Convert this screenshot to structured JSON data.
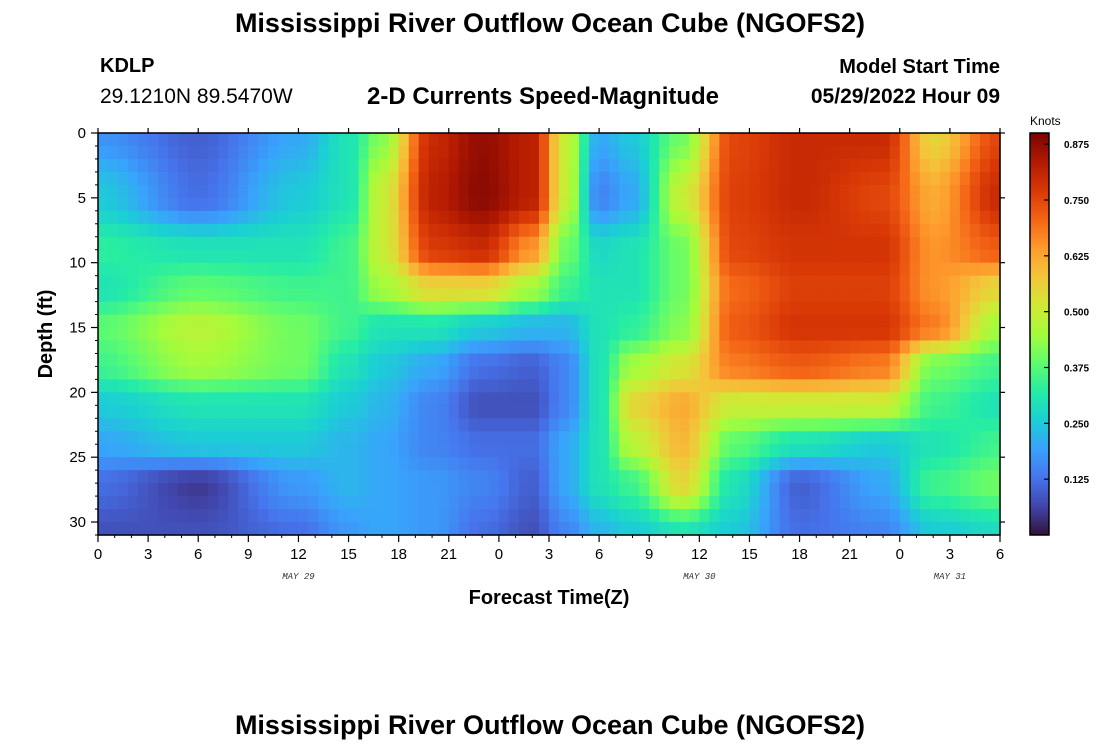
{
  "header": {
    "main_title": "Mississippi River Outflow Ocean Cube (NGOFS2)",
    "station_id": "KDLP",
    "station_coords": "29.1210N  89.5470W",
    "plot_title": "2-D Currents Speed-Magnitude",
    "start_label": "Model Start Time",
    "start_value": "05/29/2022 Hour 09"
  },
  "footer": {
    "bottom_title": "Mississippi River Outflow Ocean Cube (NGOFS2)"
  },
  "chart_data": {
    "type": "heatmap",
    "title": "2-D Currents Speed-Magnitude",
    "xlabel": "Forecast Time(Z)",
    "ylabel": "Depth (ft)",
    "x_hours_range": [
      0,
      54
    ],
    "y_range": [
      0,
      31
    ],
    "y_inverted": true,
    "x_ticks": [
      "0",
      "3",
      "6",
      "9",
      "12",
      "15",
      "18",
      "21",
      "0",
      "3",
      "6",
      "9",
      "12",
      "15",
      "18",
      "21",
      "0",
      "3",
      "6"
    ],
    "y_ticks": [
      "0",
      "5",
      "10",
      "15",
      "20",
      "25",
      "30"
    ],
    "date_labels": [
      {
        "text": "MAY 29",
        "hour": 12
      },
      {
        "text": "MAY 30",
        "hour": 36
      },
      {
        "text": "MAY 31",
        "hour": 51
      }
    ],
    "colorbar": {
      "unit": "Knots",
      "min": 0,
      "max": 0.9,
      "ticks": [
        "0.125",
        "0.250",
        "0.375",
        "0.500",
        "0.625",
        "0.750",
        "0.875"
      ],
      "colors": [
        "#30123b",
        "#4145ab",
        "#4675ed",
        "#39a2fc",
        "#1bcfd4",
        "#24eca6",
        "#61fc6c",
        "#a4fc3b",
        "#d1e834",
        "#f3c63a",
        "#fe9b2d",
        "#f36315",
        "#d93806",
        "#b11901",
        "#7a0403"
      ]
    },
    "grid_points": [
      [
        0,
        0,
        0.17
      ],
      [
        6,
        0,
        0.1
      ],
      [
        12,
        0,
        0.2
      ],
      [
        15,
        0,
        0.3
      ],
      [
        17,
        0,
        0.42
      ],
      [
        20,
        0,
        0.8
      ],
      [
        23,
        0,
        0.87
      ],
      [
        26,
        0,
        0.82
      ],
      [
        28,
        0,
        0.5
      ],
      [
        30,
        0,
        0.2
      ],
      [
        32,
        0,
        0.25
      ],
      [
        35,
        0,
        0.4
      ],
      [
        38,
        0,
        0.75
      ],
      [
        42,
        0,
        0.8
      ],
      [
        47,
        0,
        0.8
      ],
      [
        50,
        0,
        0.55
      ],
      [
        54,
        0,
        0.75
      ],
      [
        0,
        5,
        0.25
      ],
      [
        6,
        5,
        0.12
      ],
      [
        12,
        5,
        0.25
      ],
      [
        15,
        5,
        0.3
      ],
      [
        17,
        5,
        0.5
      ],
      [
        20,
        5,
        0.82
      ],
      [
        23,
        5,
        0.88
      ],
      [
        26,
        5,
        0.82
      ],
      [
        28,
        5,
        0.5
      ],
      [
        30,
        5,
        0.15
      ],
      [
        32,
        5,
        0.2
      ],
      [
        35,
        5,
        0.5
      ],
      [
        38,
        5,
        0.76
      ],
      [
        42,
        5,
        0.8
      ],
      [
        47,
        5,
        0.75
      ],
      [
        50,
        5,
        0.62
      ],
      [
        54,
        5,
        0.8
      ],
      [
        0,
        9,
        0.33
      ],
      [
        6,
        9,
        0.3
      ],
      [
        12,
        9,
        0.3
      ],
      [
        15,
        9,
        0.35
      ],
      [
        17,
        9,
        0.5
      ],
      [
        20,
        9,
        0.77
      ],
      [
        23,
        9,
        0.8
      ],
      [
        26,
        9,
        0.65
      ],
      [
        28,
        9,
        0.4
      ],
      [
        30,
        9,
        0.28
      ],
      [
        32,
        9,
        0.3
      ],
      [
        35,
        9,
        0.4
      ],
      [
        38,
        9,
        0.75
      ],
      [
        42,
        9,
        0.78
      ],
      [
        47,
        9,
        0.78
      ],
      [
        50,
        9,
        0.65
      ],
      [
        54,
        9,
        0.72
      ],
      [
        0,
        12,
        0.3
      ],
      [
        6,
        12,
        0.38
      ],
      [
        12,
        12,
        0.35
      ],
      [
        15,
        12,
        0.35
      ],
      [
        17,
        12,
        0.45
      ],
      [
        20,
        12,
        0.55
      ],
      [
        23,
        12,
        0.55
      ],
      [
        26,
        12,
        0.45
      ],
      [
        28,
        12,
        0.35
      ],
      [
        30,
        12,
        0.3
      ],
      [
        32,
        12,
        0.3
      ],
      [
        35,
        12,
        0.4
      ],
      [
        38,
        12,
        0.7
      ],
      [
        42,
        12,
        0.76
      ],
      [
        47,
        12,
        0.76
      ],
      [
        50,
        12,
        0.65
      ],
      [
        54,
        12,
        0.55
      ],
      [
        0,
        15,
        0.38
      ],
      [
        6,
        15,
        0.48
      ],
      [
        12,
        15,
        0.4
      ],
      [
        15,
        15,
        0.35
      ],
      [
        17,
        15,
        0.3
      ],
      [
        20,
        15,
        0.3
      ],
      [
        23,
        15,
        0.25
      ],
      [
        26,
        15,
        0.22
      ],
      [
        28,
        15,
        0.22
      ],
      [
        30,
        15,
        0.3
      ],
      [
        32,
        15,
        0.33
      ],
      [
        35,
        15,
        0.42
      ],
      [
        38,
        15,
        0.72
      ],
      [
        42,
        15,
        0.78
      ],
      [
        47,
        15,
        0.78
      ],
      [
        50,
        15,
        0.68
      ],
      [
        54,
        15,
        0.45
      ],
      [
        0,
        18,
        0.35
      ],
      [
        6,
        18,
        0.45
      ],
      [
        12,
        18,
        0.4
      ],
      [
        15,
        18,
        0.3
      ],
      [
        17,
        18,
        0.25
      ],
      [
        20,
        18,
        0.2
      ],
      [
        23,
        18,
        0.12
      ],
      [
        26,
        18,
        0.1
      ],
      [
        28,
        18,
        0.15
      ],
      [
        30,
        18,
        0.3
      ],
      [
        32,
        18,
        0.45
      ],
      [
        35,
        18,
        0.52
      ],
      [
        38,
        18,
        0.68
      ],
      [
        42,
        18,
        0.72
      ],
      [
        47,
        18,
        0.68
      ],
      [
        50,
        18,
        0.4
      ],
      [
        54,
        18,
        0.35
      ],
      [
        0,
        21,
        0.25
      ],
      [
        6,
        21,
        0.3
      ],
      [
        12,
        21,
        0.3
      ],
      [
        15,
        21,
        0.25
      ],
      [
        17,
        21,
        0.22
      ],
      [
        20,
        21,
        0.15
      ],
      [
        23,
        21,
        0.08
      ],
      [
        26,
        21,
        0.08
      ],
      [
        28,
        21,
        0.15
      ],
      [
        30,
        21,
        0.3
      ],
      [
        32,
        21,
        0.55
      ],
      [
        35,
        21,
        0.62
      ],
      [
        38,
        21,
        0.5
      ],
      [
        42,
        21,
        0.5
      ],
      [
        47,
        21,
        0.5
      ],
      [
        50,
        21,
        0.35
      ],
      [
        54,
        21,
        0.3
      ],
      [
        0,
        24,
        0.2
      ],
      [
        6,
        24,
        0.25
      ],
      [
        12,
        24,
        0.25
      ],
      [
        15,
        24,
        0.22
      ],
      [
        17,
        24,
        0.2
      ],
      [
        20,
        24,
        0.15
      ],
      [
        23,
        24,
        0.12
      ],
      [
        26,
        24,
        0.12
      ],
      [
        28,
        24,
        0.2
      ],
      [
        30,
        24,
        0.3
      ],
      [
        32,
        24,
        0.48
      ],
      [
        35,
        24,
        0.6
      ],
      [
        38,
        24,
        0.38
      ],
      [
        42,
        24,
        0.3
      ],
      [
        47,
        24,
        0.25
      ],
      [
        50,
        24,
        0.3
      ],
      [
        54,
        24,
        0.35
      ],
      [
        0,
        27,
        0.12
      ],
      [
        6,
        27,
        0.05
      ],
      [
        12,
        27,
        0.18
      ],
      [
        15,
        27,
        0.22
      ],
      [
        17,
        27,
        0.2
      ],
      [
        20,
        27,
        0.18
      ],
      [
        23,
        27,
        0.15
      ],
      [
        26,
        27,
        0.1
      ],
      [
        28,
        27,
        0.2
      ],
      [
        30,
        27,
        0.3
      ],
      [
        32,
        27,
        0.35
      ],
      [
        35,
        27,
        0.55
      ],
      [
        38,
        27,
        0.3
      ],
      [
        42,
        27,
        0.1
      ],
      [
        47,
        27,
        0.2
      ],
      [
        50,
        27,
        0.35
      ],
      [
        54,
        27,
        0.4
      ],
      [
        0,
        31,
        0.08
      ],
      [
        6,
        31,
        0.08
      ],
      [
        12,
        31,
        0.12
      ],
      [
        15,
        31,
        0.18
      ],
      [
        17,
        31,
        0.2
      ],
      [
        20,
        31,
        0.18
      ],
      [
        23,
        31,
        0.12
      ],
      [
        26,
        31,
        0.08
      ],
      [
        28,
        31,
        0.15
      ],
      [
        30,
        31,
        0.22
      ],
      [
        32,
        31,
        0.25
      ],
      [
        35,
        31,
        0.3
      ],
      [
        38,
        31,
        0.25
      ],
      [
        42,
        31,
        0.12
      ],
      [
        47,
        31,
        0.15
      ],
      [
        50,
        31,
        0.25
      ],
      [
        54,
        31,
        0.28
      ]
    ]
  }
}
